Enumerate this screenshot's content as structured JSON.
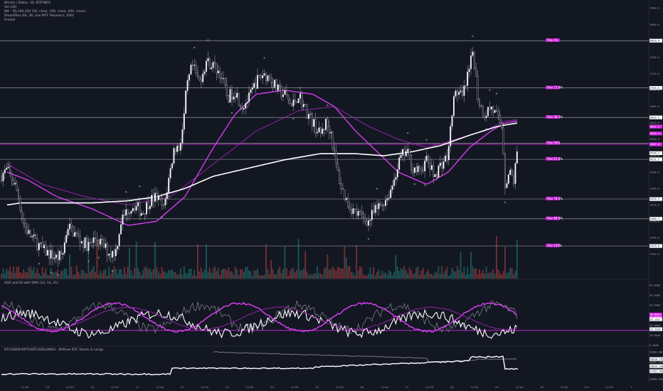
{
  "chart_data": {
    "type": "candlestick",
    "title": "Bitcoin / Dollar, 30, BITFINEX",
    "indicators": [
      "Vol (20)",
      "MA - 50,100,200 (50, close, 100, close, 200, close)",
      "SmartFibo (60, 36, Use MTF Fibonacci, 200)",
      "Fractal"
    ],
    "price_axis": {
      "min": 6240,
      "max": 6920,
      "ticks": [
        6900,
        6860,
        6820,
        6780,
        6740,
        6700,
        6660,
        6620,
        6580,
        6540,
        6500,
        6460,
        6420,
        6380,
        6340,
        6300
      ]
    },
    "price_axis_tags": [
      {
        "value": 6820.8,
        "label": "6820.8",
        "style": "white"
      },
      {
        "value": 6705.5,
        "label": "6705.5",
        "style": "white"
      },
      {
        "value": 6633.5,
        "label": "6633.5",
        "style": "white"
      },
      {
        "value": 6611.1,
        "label": "6611.1",
        "style": "magenta"
      },
      {
        "value": 6594.3,
        "label": "6594.3",
        "style": "magenta"
      },
      {
        "value": 6567.8,
        "label": "6567.8",
        "style": "magenta"
      },
      {
        "value": 6546.3,
        "label": "6546.3",
        "style": "white"
      },
      {
        "value": 6531.2,
        "label": "6531.2",
        "style": "white"
      },
      {
        "value": 6434.3,
        "label": "6434.3",
        "style": "white"
      },
      {
        "value": 6386.1,
        "label": "6386.1",
        "style": "white"
      },
      {
        "value": 6319.8,
        "label": "6319.8",
        "style": "white"
      }
    ],
    "fib_levels": [
      {
        "label": "Fibo 0%",
        "value": 6820.8
      },
      {
        "label": "Fibo 23.6%",
        "value": 6705.5
      },
      {
        "label": "Fibo 38.2%",
        "value": 6633.5
      },
      {
        "label": "Fibo 50%",
        "value": 6570.1
      },
      {
        "label": "Fibo 61.8%",
        "value": 6531.2
      },
      {
        "label": "Fibo 78.6%",
        "value": 6434.3
      },
      {
        "label": "Fibo 88.6%",
        "value": 6386.1
      },
      {
        "label": "Fibo 100%",
        "value": 6319.8
      }
    ],
    "current_price_line": 6567.8,
    "time_axis": [
      "12:00",
      "19",
      "12:00",
      "20",
      "12:00",
      "21",
      "12:00",
      "22",
      "12:00",
      "23",
      "12:00",
      "24",
      "12:00",
      "25",
      "12:00",
      "26",
      "12:00",
      "27",
      "12:00",
      "28",
      "12:00",
      "29",
      "12:00",
      "30",
      "12:00",
      "Oct",
      "12:00",
      "2"
    ],
    "price_path": [
      [
        0,
        6490
      ],
      [
        10,
        6505
      ],
      [
        18,
        6480
      ],
      [
        25,
        6450
      ],
      [
        32,
        6380
      ],
      [
        40,
        6350
      ],
      [
        50,
        6330
      ],
      [
        60,
        6310
      ],
      [
        70,
        6300
      ],
      [
        80,
        6290
      ],
      [
        88,
        6300
      ],
      [
        95,
        6370
      ],
      [
        105,
        6350
      ],
      [
        115,
        6330
      ],
      [
        125,
        6320
      ],
      [
        135,
        6340
      ],
      [
        145,
        6320
      ],
      [
        155,
        6300
      ],
      [
        163,
        6310
      ],
      [
        170,
        6380
      ],
      [
        180,
        6410
      ],
      [
        190,
        6420
      ],
      [
        200,
        6400
      ],
      [
        210,
        6430
      ],
      [
        220,
        6440
      ],
      [
        230,
        6410
      ],
      [
        238,
        6490
      ],
      [
        245,
        6560
      ],
      [
        252,
        6560
      ],
      [
        258,
        6620
      ],
      [
        262,
        6700
      ],
      [
        270,
        6760
      ],
      [
        280,
        6720
      ],
      [
        290,
        6770
      ],
      [
        300,
        6760
      ],
      [
        310,
        6740
      ],
      [
        320,
        6680
      ],
      [
        330,
        6700
      ],
      [
        340,
        6660
      ],
      [
        350,
        6680
      ],
      [
        360,
        6720
      ],
      [
        370,
        6740
      ],
      [
        380,
        6730
      ],
      [
        390,
        6700
      ],
      [
        400,
        6690
      ],
      [
        410,
        6660
      ],
      [
        420,
        6690
      ],
      [
        430,
        6650
      ],
      [
        440,
        6620
      ],
      [
        450,
        6590
      ],
      [
        458,
        6620
      ],
      [
        465,
        6600
      ],
      [
        472,
        6520
      ],
      [
        480,
        6460
      ],
      [
        490,
        6420
      ],
      [
        500,
        6400
      ],
      [
        510,
        6390
      ],
      [
        518,
        6380
      ],
      [
        525,
        6400
      ],
      [
        535,
        6420
      ],
      [
        545,
        6440
      ],
      [
        552,
        6470
      ],
      [
        558,
        6510
      ],
      [
        565,
        6540
      ],
      [
        572,
        6550
      ],
      [
        580,
        6510
      ],
      [
        590,
        6500
      ],
      [
        600,
        6530
      ],
      [
        610,
        6490
      ],
      [
        620,
        6520
      ],
      [
        630,
        6540
      ],
      [
        636,
        6660
      ],
      [
        642,
        6700
      ],
      [
        650,
        6680
      ],
      [
        660,
        6750
      ],
      [
        665,
        6800
      ],
      [
        672,
        6680
      ],
      [
        680,
        6640
      ],
      [
        690,
        6660
      ],
      [
        700,
        6630
      ],
      [
        706,
        6610
      ],
      [
        710,
        6470
      ],
      [
        716,
        6500
      ],
      [
        722,
        6480
      ],
      [
        728,
        6560
      ]
    ],
    "ma_white_path": [
      [
        10,
        6420
      ],
      [
        30,
        6425
      ],
      [
        80,
        6425
      ],
      [
        130,
        6425
      ],
      [
        180,
        6430
      ],
      [
        220,
        6440
      ],
      [
        260,
        6460
      ],
      [
        300,
        6490
      ],
      [
        350,
        6510
      ],
      [
        400,
        6530
      ],
      [
        450,
        6545
      ],
      [
        500,
        6545
      ],
      [
        540,
        6540
      ],
      [
        580,
        6550
      ],
      [
        620,
        6565
      ],
      [
        660,
        6590
      ],
      [
        700,
        6612
      ],
      [
        728,
        6620
      ]
    ],
    "ma_magenta_path": [
      [
        10,
        6500
      ],
      [
        40,
        6480
      ],
      [
        80,
        6440
      ],
      [
        130,
        6410
      ],
      [
        180,
        6370
      ],
      [
        220,
        6380
      ],
      [
        260,
        6440
      ],
      [
        300,
        6560
      ],
      [
        330,
        6640
      ],
      [
        360,
        6690
      ],
      [
        400,
        6700
      ],
      [
        440,
        6690
      ],
      [
        470,
        6660
      ],
      [
        500,
        6600
      ],
      [
        530,
        6550
      ],
      [
        560,
        6500
      ],
      [
        600,
        6470
      ],
      [
        630,
        6500
      ],
      [
        660,
        6560
      ],
      [
        690,
        6600
      ],
      [
        710,
        6620
      ],
      [
        728,
        6625
      ]
    ],
    "ma_purple_path": [
      [
        10,
        6520
      ],
      [
        60,
        6470
      ],
      [
        120,
        6440
      ],
      [
        180,
        6420
      ],
      [
        240,
        6440
      ],
      [
        300,
        6520
      ],
      [
        360,
        6600
      ],
      [
        420,
        6650
      ],
      [
        470,
        6660
      ],
      [
        520,
        6610
      ],
      [
        560,
        6580
      ],
      [
        600,
        6560
      ],
      [
        640,
        6580
      ],
      [
        680,
        6600
      ],
      [
        710,
        6625
      ],
      [
        728,
        6628
      ]
    ],
    "adx_panel": {
      "legend": "ADX and DI with SMA (14, 14, 21)",
      "axis_ticks": [
        "60.0000",
        "50.0000",
        "40.0000",
        "30.0000",
        "20.0000",
        "10.0000",
        "0.0000"
      ],
      "axis_tags": [
        {
          "label": "30.8063",
          "style": "magenta"
        },
        {
          "label": "27.9154",
          "style": "magenta"
        },
        {
          "label": "26.1327",
          "style": "white"
        },
        {
          "label": "16.2209",
          "style": "white"
        }
      ],
      "range": [
        0,
        65
      ]
    },
    "shorts_panel": {
      "legend": "BTCUSDSHORTS/BTCUSDLONGS - Bitfinex BTC Shorts & Longs",
      "axis_ticks": [
        "33000.0000",
        "30000.0000",
        "25000.0000"
      ],
      "axis_tags": [
        {
          "label": "30910.1654",
          "style": "white"
        },
        {
          "label": "28816.2004",
          "style": "white"
        },
        {
          "label": "27951.4968",
          "style": "white"
        }
      ]
    }
  }
}
